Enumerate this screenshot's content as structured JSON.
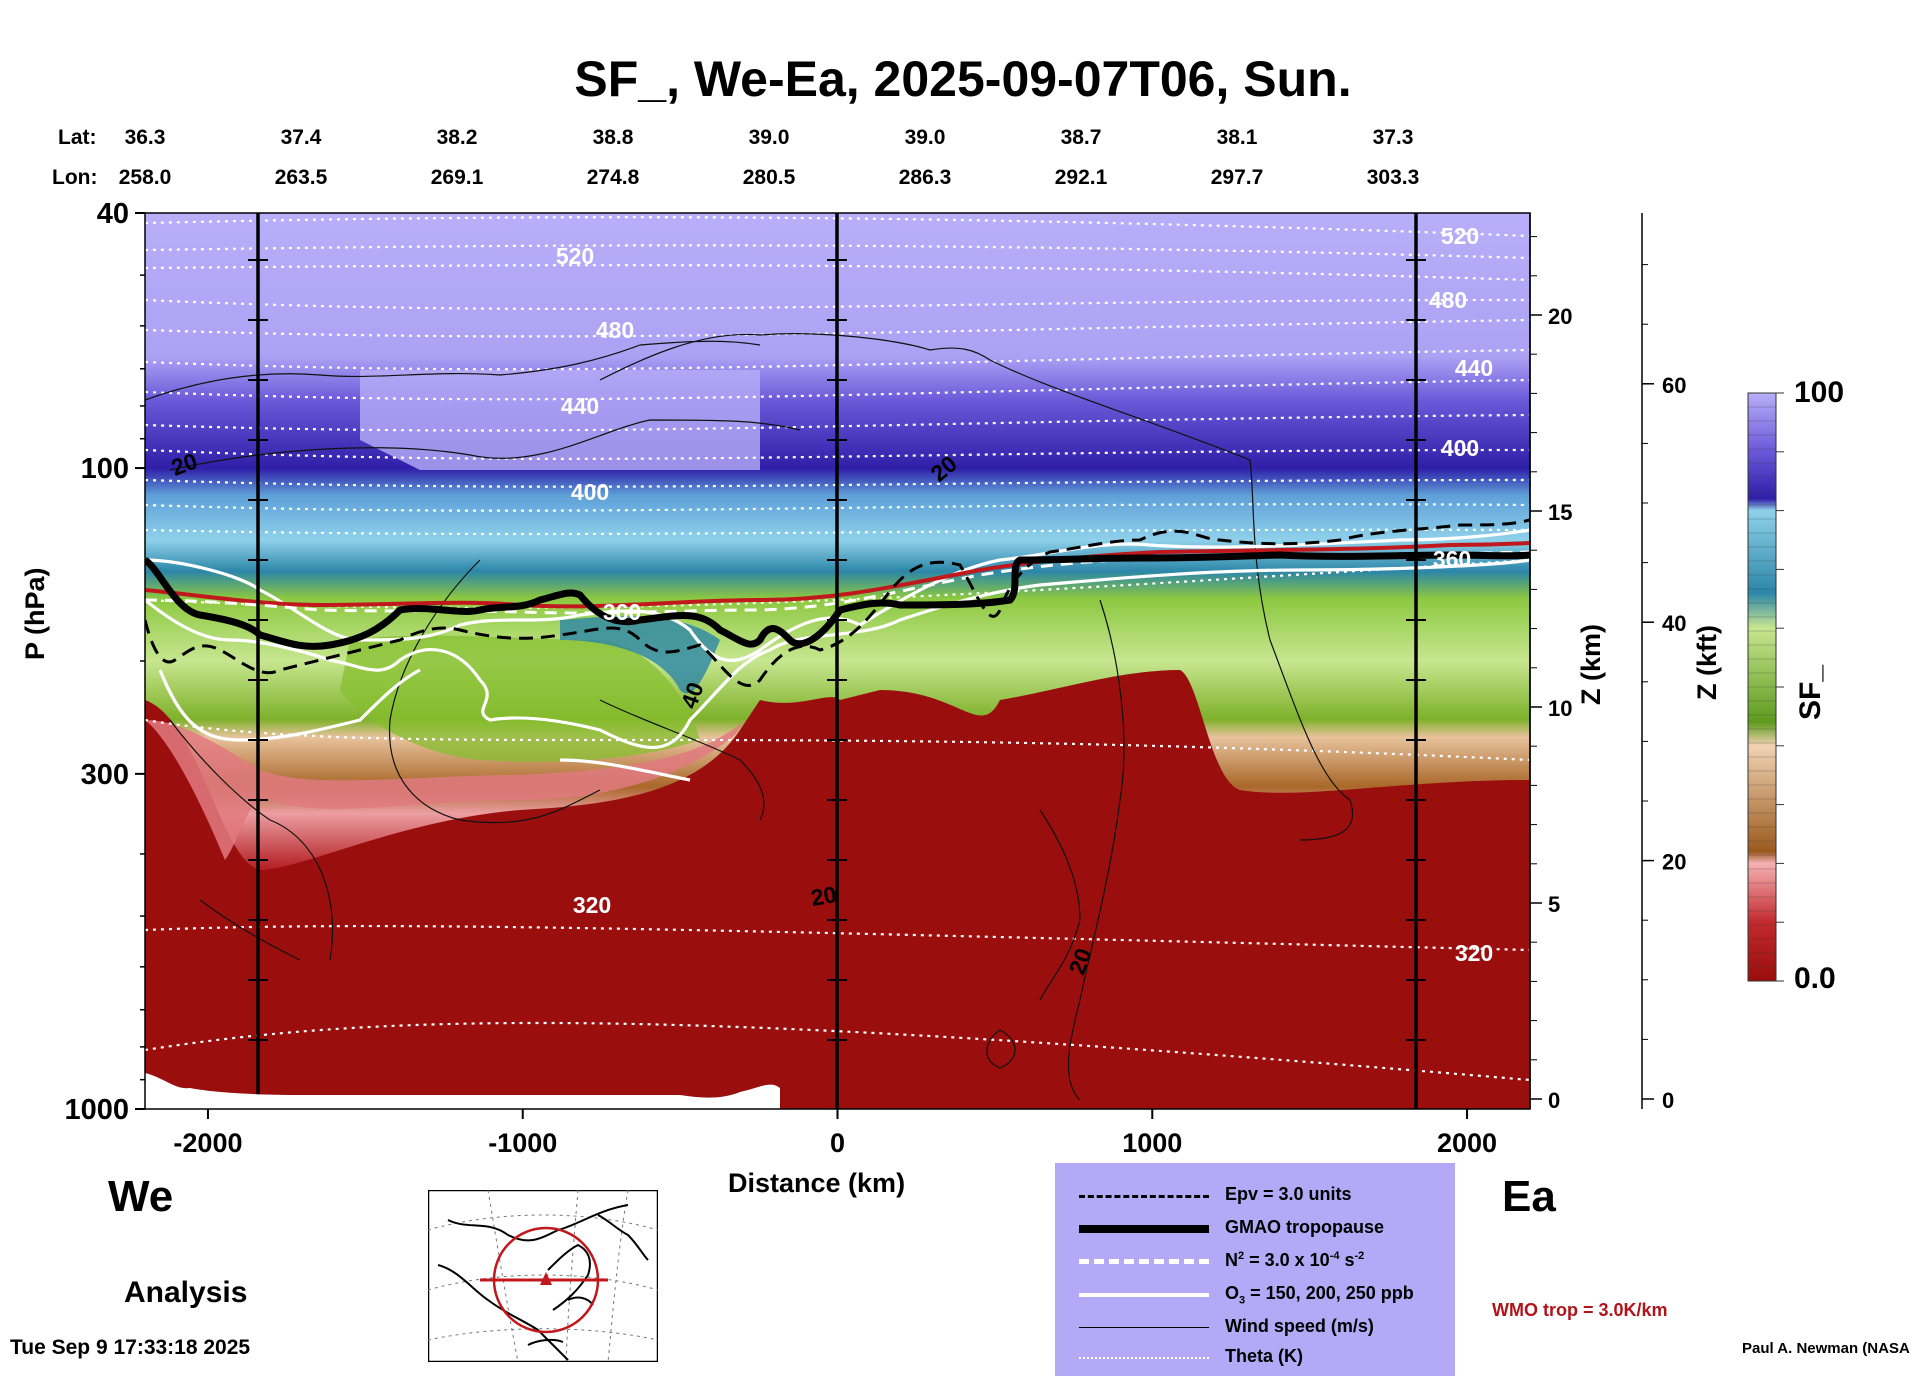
{
  "title": "SF_, We-Ea, 2025-09-07T06, Sun.",
  "coords": {
    "lat_label": "Lat:",
    "lon_label": "Lon:",
    "lat": [
      "36.3",
      "37.4",
      "38.2",
      "38.8",
      "39.0",
      "39.0",
      "38.7",
      "38.1",
      "37.3"
    ],
    "lon": [
      "258.0",
      "263.5",
      "269.1",
      "274.8",
      "280.5",
      "286.3",
      "292.1",
      "297.7",
      "303.3"
    ]
  },
  "chart_data": {
    "type": "heatmap",
    "title": "SF_, We-Ea, 2025-09-07T06, Sun.",
    "xlabel": "Distance (km)",
    "ylabel": "P (hPa)",
    "xlim": [
      -2200,
      2200
    ],
    "ylim": [
      1000,
      40
    ],
    "x_ticks": [
      {
        "value": -2000,
        "label": "-2000"
      },
      {
        "value": -1000,
        "label": "-1000"
      },
      {
        "value": 0,
        "label": "0"
      },
      {
        "value": 1000,
        "label": "1000"
      },
      {
        "value": 2000,
        "label": "2000"
      }
    ],
    "y_ticks": [
      {
        "value": 40,
        "label": "40"
      },
      {
        "value": 100,
        "label": "100"
      },
      {
        "value": 300,
        "label": "300"
      },
      {
        "value": 1000,
        "label": "1000"
      }
    ],
    "z_km_axis": {
      "label": "Z (km)",
      "ticks": [
        "0",
        "5",
        "10",
        "15",
        "20"
      ]
    },
    "z_kft_axis": {
      "label": "Z (kft)",
      "ticks": [
        "0",
        "20",
        "40",
        "60"
      ]
    },
    "colorbar": {
      "label": "SF_",
      "min": "0.0",
      "max": "100"
    },
    "theta_labels": [
      "520",
      "480",
      "440",
      "400",
      "360",
      "320",
      "520",
      "480",
      "440",
      "400",
      "360",
      "320"
    ],
    "wind_labels": [
      "20",
      "20",
      "40",
      "20",
      "20"
    ],
    "colors": {
      "stratosphere_top": "#b6aaf6",
      "stratosphere_mid": "#6b5ad6",
      "jet_blue": "#2f1fa8",
      "light_blue": "#6fb7de",
      "teal": "#2b7fa4",
      "green": "#7fba2f",
      "light_green": "#b9df7a",
      "tan": "#d9a77b",
      "brown": "#a86a2a",
      "pink": "#e8898f",
      "dark_red": "#990d0d",
      "tropopause_red": "#c0181c",
      "legend_bg": "#b3a9f6"
    }
  },
  "labels": {
    "west": "We",
    "east": "Ea",
    "analysis": "Analysis",
    "timestamp": "Tue Sep  9 17:33:18 2025",
    "author": "Paul A. Newman (NASA",
    "wmo": "WMO trop = 3.0K/km"
  },
  "legend": {
    "epv": "Epv = 3.0 units",
    "tropopause": "GMAO tropopause",
    "n2_prefix": "N",
    "n2_sup": "2",
    "n2_mid": " = 3.0 x 10",
    "n2_exp": "-4",
    "n2_unit": " s",
    "n2_unit_exp": "-2",
    "o3_prefix": "O",
    "o3_sub": "3",
    "o3_suffix": " = 150, 200, 250 ppb",
    "wind": "Wind speed (m/s)",
    "theta": "Theta (K)"
  }
}
